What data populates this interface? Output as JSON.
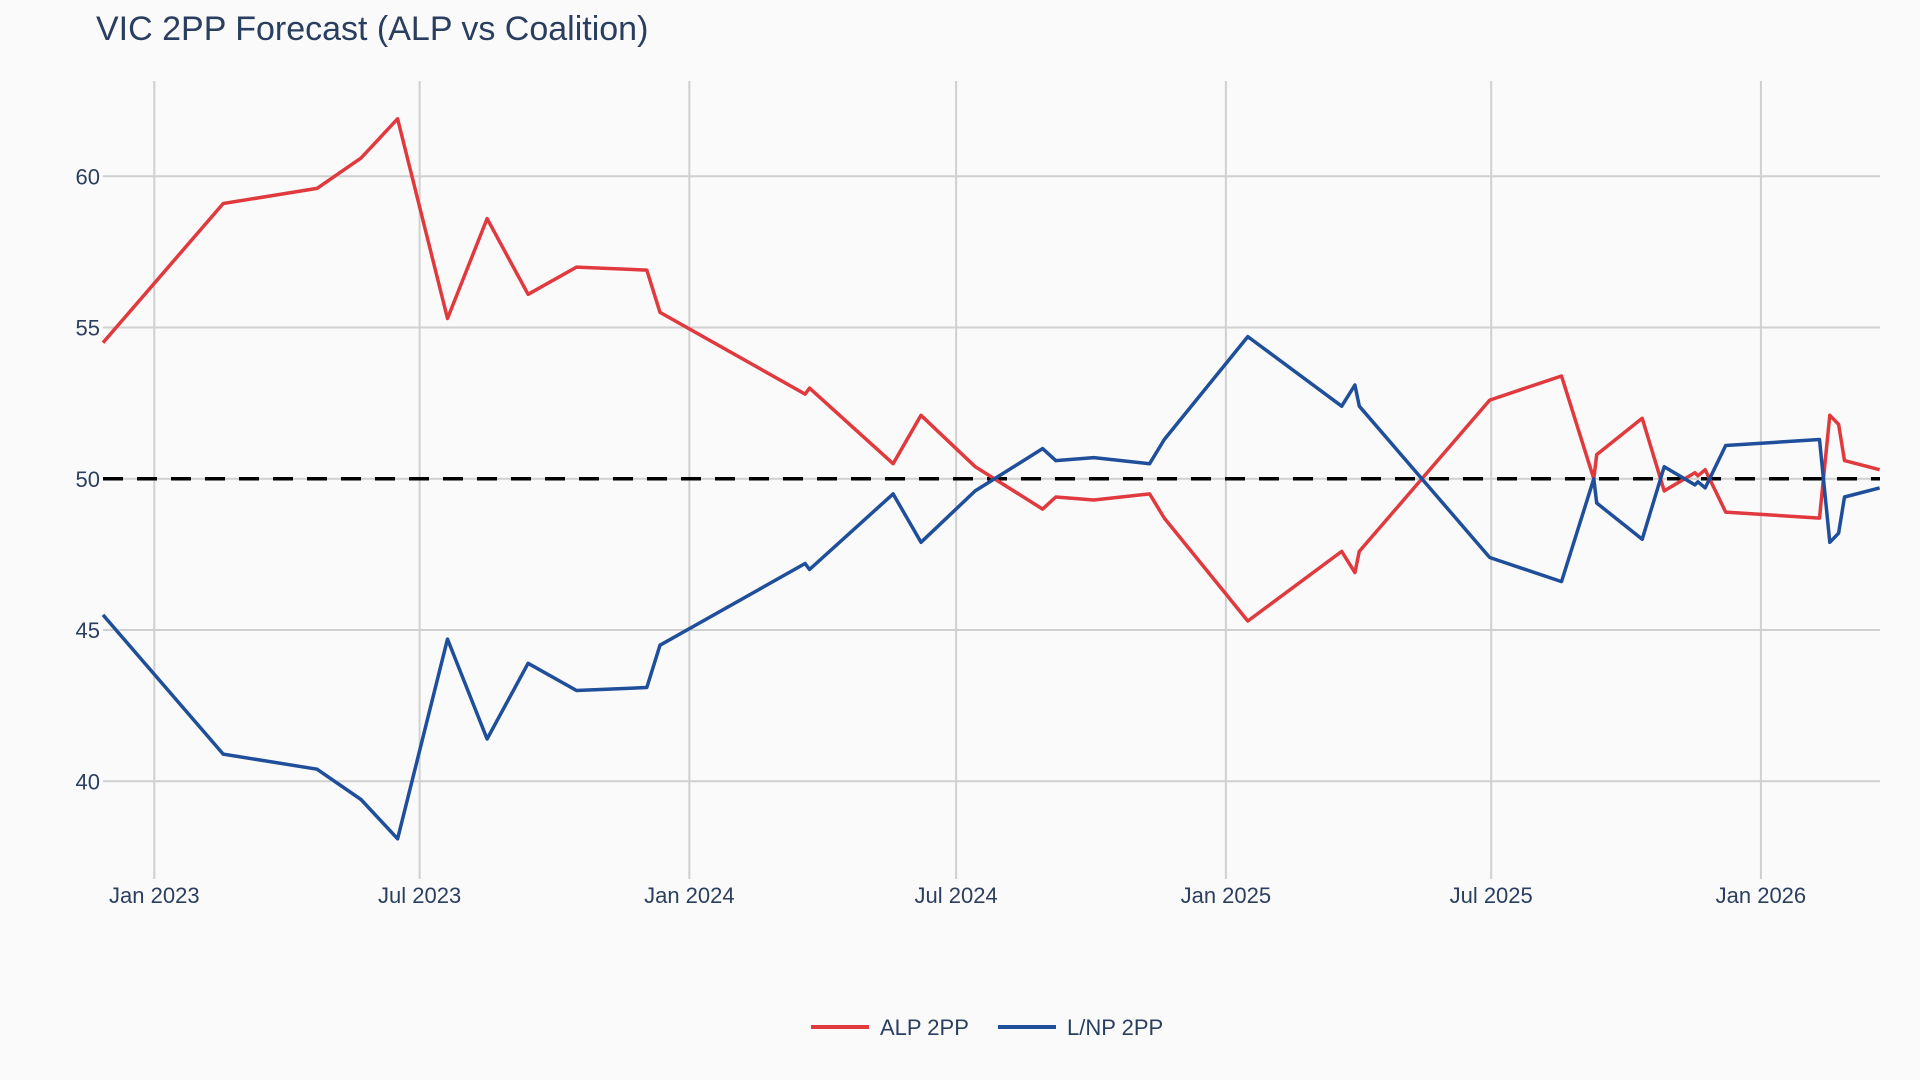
{
  "chart_data": {
    "type": "line",
    "title": "VIC 2PP Forecast (ALP vs Coalition)",
    "xlabel": "",
    "ylabel": "",
    "xlim": [
      "2022-11-27",
      "2026-03-23"
    ],
    "ylim": [
      37,
      63
    ],
    "grid": true,
    "legend_position": "bottom-center",
    "x_ticks": [
      "2023-01-01",
      "2023-07-01",
      "2024-01-01",
      "2024-07-01",
      "2025-01-01",
      "2025-07-01",
      "2026-01-01"
    ],
    "x_tick_labels": [
      "Jan 2023",
      "Jul 2023",
      "Jan 2024",
      "Jul 2024",
      "Jan 2025",
      "Jul 2025",
      "Jan 2026"
    ],
    "y_ticks": [
      40,
      45,
      50,
      55,
      60
    ],
    "y_tick_labels": [
      "40",
      "45",
      "50",
      "55",
      "60"
    ],
    "reference_line": {
      "y": 50,
      "style": "dashed",
      "color": "#000000"
    },
    "x": [
      "2022-11-27",
      "2023-02-17",
      "2023-04-22",
      "2023-05-22",
      "2023-06-16",
      "2023-07-20",
      "2023-08-16",
      "2023-09-13",
      "2023-10-16",
      "2023-12-03",
      "2023-12-12",
      "2024-03-20",
      "2024-03-23",
      "2024-05-19",
      "2024-06-07",
      "2024-07-14",
      "2024-08-29",
      "2024-09-07",
      "2024-10-03",
      "2024-11-10",
      "2024-11-20",
      "2025-01-16",
      "2025-03-21",
      "2025-03-30",
      "2025-04-02",
      "2025-06-30",
      "2025-08-18",
      "2025-09-09",
      "2025-09-11",
      "2025-10-12",
      "2025-10-27",
      "2025-11-17",
      "2025-11-19",
      "2025-11-24",
      "2025-12-08",
      "2026-02-10",
      "2026-02-17",
      "2026-02-23",
      "2026-02-27",
      "2026-03-23"
    ],
    "series": [
      {
        "name": "ALP 2PP",
        "color": "#e0393e",
        "values": [
          54.5,
          59.1,
          59.6,
          60.6,
          61.9,
          55.3,
          58.6,
          56.1,
          57.0,
          56.9,
          55.5,
          52.8,
          53.0,
          50.5,
          52.1,
          50.4,
          49.0,
          49.4,
          49.3,
          49.5,
          48.7,
          45.3,
          47.6,
          46.9,
          47.6,
          52.6,
          53.4,
          50.0,
          50.8,
          52.0,
          49.6,
          50.2,
          50.1,
          50.3,
          48.9,
          48.7,
          52.1,
          51.8,
          50.6,
          50.3
        ]
      },
      {
        "name": "L/NP 2PP",
        "color": "#1f4e9a",
        "values": [
          45.5,
          40.9,
          40.4,
          39.4,
          38.1,
          44.7,
          41.4,
          43.9,
          43.0,
          43.1,
          44.5,
          47.2,
          47.0,
          49.5,
          47.9,
          49.6,
          51.0,
          50.6,
          50.7,
          50.5,
          51.3,
          54.7,
          52.4,
          53.1,
          52.4,
          47.4,
          46.6,
          50.0,
          49.2,
          48.0,
          50.4,
          49.8,
          49.9,
          49.7,
          51.1,
          51.3,
          47.9,
          48.2,
          49.4,
          49.7
        ]
      }
    ]
  }
}
